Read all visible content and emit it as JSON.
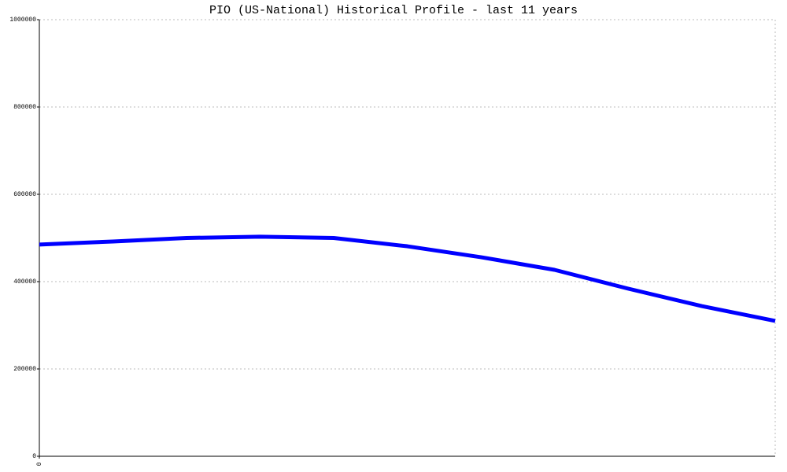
{
  "chart_data": {
    "type": "line",
    "title": "PIO (US-National) Historical Profile - last 11 years",
    "x": [
      0,
      1,
      2,
      3,
      4,
      5,
      6,
      7,
      8,
      9,
      10
    ],
    "series": [
      {
        "color": "#0000ff",
        "values": [
          485000,
          492000,
          500000,
          503000,
          500000,
          481000,
          456000,
          427000,
          384000,
          344000,
          310000
        ]
      }
    ],
    "xlim": [
      0,
      10
    ],
    "xticks": [
      0
    ],
    "ylim": [
      0,
      1000000
    ],
    "yticks": [
      0,
      200000,
      400000,
      600000,
      800000,
      1000000
    ],
    "grid": true
  }
}
